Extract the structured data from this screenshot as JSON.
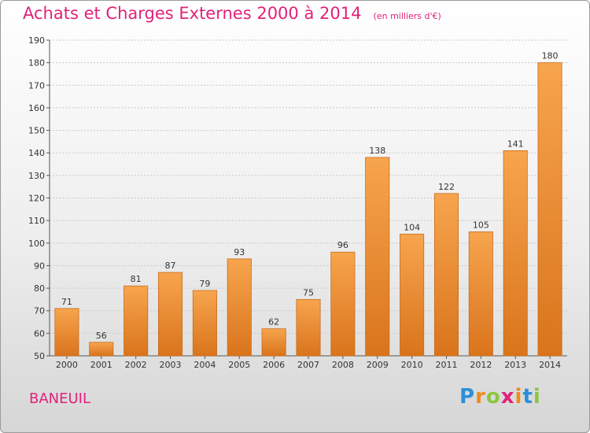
{
  "chart_data": {
    "type": "bar",
    "title": "Achats et Charges Externes 2000 à 2014",
    "subtitle": "(en milliers d'€)",
    "categories": [
      "2000",
      "2001",
      "2002",
      "2003",
      "2004",
      "2005",
      "2006",
      "2007",
      "2008",
      "2009",
      "2010",
      "2011",
      "2012",
      "2013",
      "2014"
    ],
    "values": [
      71,
      56,
      81,
      87,
      79,
      93,
      62,
      75,
      96,
      138,
      104,
      122,
      105,
      141,
      180
    ],
    "ylim": [
      50,
      190
    ],
    "yticks": [
      50,
      60,
      70,
      80,
      90,
      100,
      110,
      120,
      130,
      140,
      150,
      160,
      170,
      180,
      190
    ],
    "grid": true,
    "bar_color_top": "#f7a54e",
    "bar_color_bottom": "#d9741c",
    "bar_border": "#c86d1f"
  },
  "commune": "BANEUIL",
  "logo": {
    "letters": [
      "P",
      "r",
      "o",
      "x",
      "i",
      "t",
      "i"
    ],
    "colors": [
      "#2b8fd8",
      "#f08a1c",
      "#8cc63e",
      "#e0227a",
      "#f08a1c",
      "#2b8fd8",
      "#8cc63e"
    ]
  },
  "text_color": "#e0227a"
}
